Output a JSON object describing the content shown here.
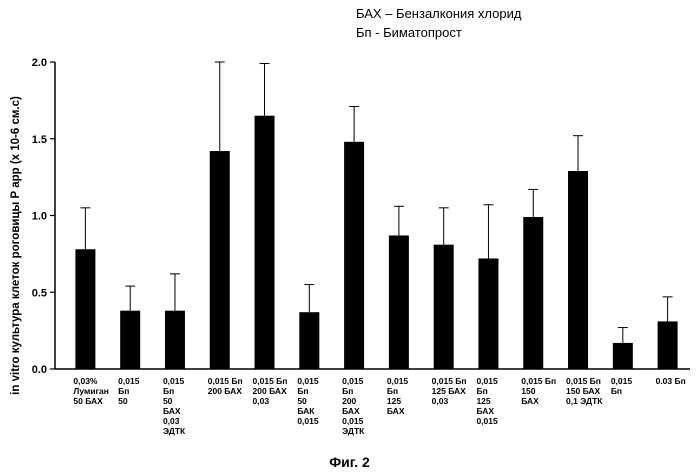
{
  "legend": {
    "line1": "БАХ – Бензалкония хлорид",
    "line2": "Бп - Биматопрост"
  },
  "figure_caption": "Фиг. 2",
  "chart_data": {
    "type": "bar",
    "title": "",
    "xlabel": "",
    "ylabel": "in vitro культура клеток роговицы P app (x 10-6 см.с)",
    "ylim": [
      0,
      2.0
    ],
    "yticks": [
      "0.0",
      "0.5",
      "1.0",
      "1.5",
      "2.0"
    ],
    "grid": false,
    "legend_position": "top-right",
    "bar_color": "#000000",
    "error_bars": true,
    "categories": [
      [
        "0,03%",
        "Лумиган",
        "50 БАХ"
      ],
      [
        "0,015",
        "Бп",
        "50"
      ],
      [
        "0,015",
        "Бп",
        "50",
        "БАХ",
        "0,03",
        "ЭДТК"
      ],
      [
        "0,015 Бп",
        "200 БАХ"
      ],
      [
        "0,015 Бп",
        "200 БАХ",
        "0,03"
      ],
      [
        "0,015",
        "Бп",
        "50",
        "БАК",
        "0,015"
      ],
      [
        "0,015",
        "Бп",
        "200",
        "БАХ",
        "0,015",
        "ЭДТК"
      ],
      [
        "0,015",
        "Бп",
        "125",
        "БАХ"
      ],
      [
        "0,015 Бп",
        "125 БАХ",
        "0,03"
      ],
      [
        "0,015",
        "Бп",
        "125",
        "БАХ",
        "0,015"
      ],
      [
        "0,015 Бп",
        "150",
        "БАХ"
      ],
      [
        "0,015 Бп",
        "150 БАХ",
        "0,1 ЭДТК"
      ],
      [
        "0,015",
        "Бп"
      ],
      [
        "0.03 Бп"
      ]
    ],
    "values": [
      0.78,
      0.38,
      0.38,
      1.42,
      1.65,
      0.37,
      1.48,
      0.87,
      0.81,
      0.72,
      0.99,
      1.29,
      0.17,
      0.31
    ],
    "error": [
      0.27,
      0.16,
      0.24,
      0.58,
      0.34,
      0.18,
      0.23,
      0.19,
      0.24,
      0.35,
      0.18,
      0.23,
      0.1,
      0.16
    ]
  }
}
